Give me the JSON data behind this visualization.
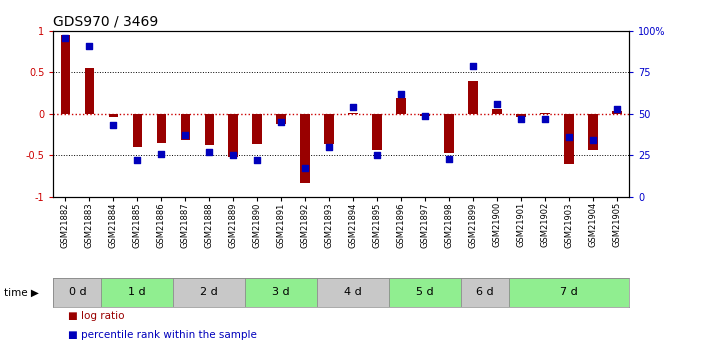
{
  "title": "GDS970 / 3469",
  "samples": [
    "GSM21882",
    "GSM21883",
    "GSM21884",
    "GSM21885",
    "GSM21886",
    "GSM21887",
    "GSM21888",
    "GSM21889",
    "GSM21890",
    "GSM21891",
    "GSM21892",
    "GSM21893",
    "GSM21894",
    "GSM21895",
    "GSM21896",
    "GSM21897",
    "GSM21898",
    "GSM21899",
    "GSM21900",
    "GSM21901",
    "GSM21902",
    "GSM21903",
    "GSM21904",
    "GSM21905"
  ],
  "log_ratio": [
    0.95,
    0.55,
    -0.04,
    -0.4,
    -0.35,
    -0.32,
    -0.38,
    -0.52,
    -0.36,
    -0.12,
    -0.83,
    -0.36,
    0.01,
    -0.44,
    0.19,
    -0.02,
    -0.47,
    0.4,
    0.06,
    -0.04,
    0.01,
    -0.6,
    -0.44,
    0.04
  ],
  "percentile_mapped": [
    0.92,
    0.82,
    -0.14,
    -0.56,
    -0.48,
    -0.26,
    -0.46,
    -0.5,
    -0.56,
    -0.1,
    -0.66,
    -0.4,
    0.08,
    -0.5,
    0.24,
    -0.02,
    -0.54,
    0.58,
    0.12,
    -0.06,
    -0.06,
    -0.28,
    -0.32,
    0.06
  ],
  "time_groups": [
    {
      "label": "0 d",
      "start": 0,
      "end": 2,
      "color": "#c8c8c8"
    },
    {
      "label": "1 d",
      "start": 2,
      "end": 5,
      "color": "#90ee90"
    },
    {
      "label": "2 d",
      "start": 5,
      "end": 8,
      "color": "#c8c8c8"
    },
    {
      "label": "3 d",
      "start": 8,
      "end": 11,
      "color": "#90ee90"
    },
    {
      "label": "4 d",
      "start": 11,
      "end": 14,
      "color": "#c8c8c8"
    },
    {
      "label": "5 d",
      "start": 14,
      "end": 17,
      "color": "#90ee90"
    },
    {
      "label": "6 d",
      "start": 17,
      "end": 19,
      "color": "#c8c8c8"
    },
    {
      "label": "7 d",
      "start": 19,
      "end": 24,
      "color": "#90ee90"
    }
  ],
  "bar_color": "#990000",
  "dot_color": "#0000bb",
  "background_color": "#ffffff",
  "title_fontsize": 10,
  "sample_fontsize": 6,
  "time_fontsize": 8,
  "ytick_labels_left": [
    "-1",
    "-0.5",
    "0",
    "0.5",
    "1"
  ],
  "ytick_labels_right": [
    "0",
    "25",
    "50",
    "75",
    "100%"
  ],
  "zero_line_color": "#cc0000",
  "legend_items": [
    "log ratio",
    "percentile rank within the sample"
  ],
  "legend_colors": [
    "#990000",
    "#0000bb"
  ]
}
